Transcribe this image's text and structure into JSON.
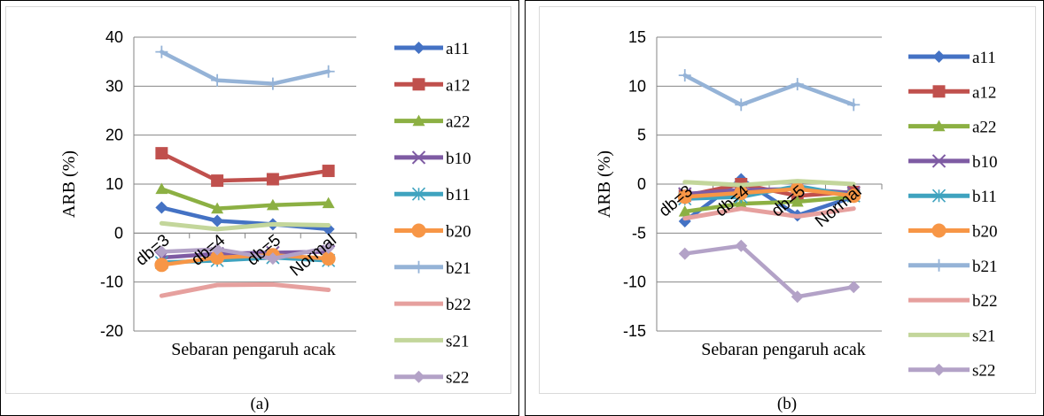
{
  "chart_data": [
    {
      "type": "line",
      "panel_label": "(a)",
      "xlabel": "Sebaran pengaruh acak",
      "ylabel": "ARB (%)",
      "categories": [
        "db=3",
        "db=4",
        "db=5",
        "Normal"
      ],
      "ylim": [
        -20,
        40
      ],
      "yticks": [
        -20,
        -10,
        0,
        10,
        20,
        30,
        40
      ],
      "grid": true,
      "legend": "right",
      "series": [
        {
          "name": "a11",
          "color": "#4472C4",
          "marker": "diamond",
          "values": [
            5.2,
            2.5,
            1.8,
            0.8
          ]
        },
        {
          "name": "a12",
          "color": "#C0504D",
          "marker": "square",
          "values": [
            16.3,
            10.7,
            11.0,
            12.7
          ]
        },
        {
          "name": "a22",
          "color": "#8CB043",
          "marker": "triangle",
          "values": [
            9.0,
            5.0,
            5.7,
            6.1
          ]
        },
        {
          "name": "b10",
          "color": "#7E5BA3",
          "marker": "x",
          "values": [
            -5.0,
            -4.2,
            -4.0,
            -3.8
          ]
        },
        {
          "name": "b11",
          "color": "#3FA3BF",
          "marker": "asterisk",
          "values": [
            -6.0,
            -5.6,
            -5.0,
            -5.6
          ]
        },
        {
          "name": "b20",
          "color": "#F79646",
          "marker": "circle",
          "values": [
            -6.5,
            -5.0,
            -4.5,
            -5.2
          ]
        },
        {
          "name": "b21",
          "color": "#95B3D7",
          "marker": "plus",
          "values": [
            37.0,
            31.2,
            30.5,
            33.0
          ]
        },
        {
          "name": "b22",
          "color": "#E6A09E",
          "marker": "none",
          "values": [
            -12.8,
            -10.6,
            -10.5,
            -11.6
          ]
        },
        {
          "name": "s21",
          "color": "#C3D69B",
          "marker": "none",
          "values": [
            2.0,
            0.8,
            1.8,
            1.6
          ]
        },
        {
          "name": "s22",
          "color": "#B3A2C7",
          "marker": "diamond",
          "values": [
            -3.8,
            -3.3,
            -5.2,
            -3.0
          ]
        }
      ]
    },
    {
      "type": "line",
      "panel_label": "(b)",
      "xlabel": "Sebaran pengaruh acak",
      "ylabel": "ARB (%)",
      "categories": [
        "db=3",
        "db=4",
        "db=5",
        "Normal"
      ],
      "ylim": [
        -15,
        15
      ],
      "yticks": [
        -15,
        -10,
        -5,
        0,
        5,
        10,
        15
      ],
      "grid": true,
      "legend": "right",
      "series": [
        {
          "name": "a11",
          "color": "#4472C4",
          "marker": "diamond",
          "values": [
            -3.8,
            0.5,
            -3.2,
            -1.3
          ]
        },
        {
          "name": "a12",
          "color": "#C0504D",
          "marker": "square",
          "values": [
            -1.2,
            0.0,
            -1.2,
            -0.8
          ]
        },
        {
          "name": "a22",
          "color": "#8CB043",
          "marker": "triangle",
          "values": [
            -2.8,
            -2.0,
            -1.8,
            -1.3
          ]
        },
        {
          "name": "b10",
          "color": "#7E5BA3",
          "marker": "x",
          "values": [
            -1.0,
            -0.6,
            -0.5,
            -0.9
          ]
        },
        {
          "name": "b11",
          "color": "#3FA3BF",
          "marker": "asterisk",
          "values": [
            -1.5,
            -1.3,
            -0.2,
            -1.2
          ]
        },
        {
          "name": "b20",
          "color": "#F79646",
          "marker": "circle",
          "values": [
            -1.3,
            -0.9,
            -0.5,
            -1.2
          ]
        },
        {
          "name": "b21",
          "color": "#95B3D7",
          "marker": "plus",
          "values": [
            11.1,
            8.1,
            10.2,
            8.1
          ]
        },
        {
          "name": "b22",
          "color": "#E6A09E",
          "marker": "none",
          "values": [
            -3.5,
            -2.5,
            -3.3,
            -2.5
          ]
        },
        {
          "name": "s21",
          "color": "#C3D69B",
          "marker": "none",
          "values": [
            0.2,
            -0.1,
            0.3,
            0.0
          ]
        },
        {
          "name": "s22",
          "color": "#B3A2C7",
          "marker": "diamond",
          "values": [
            -7.1,
            -6.3,
            -11.5,
            -10.5
          ]
        }
      ]
    }
  ]
}
